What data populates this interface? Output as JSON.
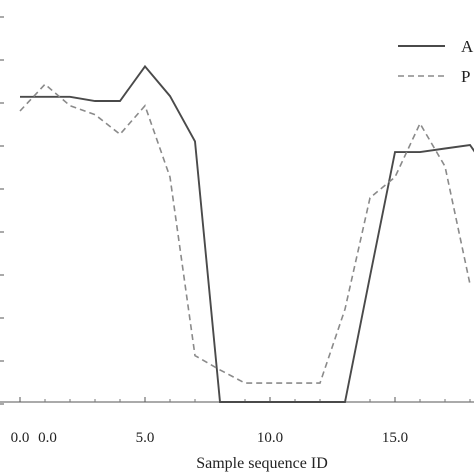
{
  "chart_data": {
    "type": "line",
    "xlabel": "Sample sequence ID",
    "ylabel": "",
    "xlim": [
      -0.5,
      18.5
    ],
    "ylim": [
      0,
      1
    ],
    "x_ticks": [
      0,
      5,
      10,
      15
    ],
    "x_tick_labels": [
      "0.0",
      "5.0",
      "10.0",
      "15.0"
    ],
    "extra_tick_label": "0.0",
    "grid": false,
    "legend_position": "top-right",
    "series": [
      {
        "name": "A",
        "style": "solid",
        "color": "#4a4a4a",
        "x": [
          0,
          1,
          2,
          3,
          4,
          5,
          6,
          7,
          8,
          9,
          10,
          11,
          12,
          13,
          14,
          15,
          16,
          17,
          18,
          18.5
        ],
        "y": [
          0.855,
          0.855,
          0.855,
          0.843,
          0.843,
          0.94,
          0.857,
          0.73,
          0.0,
          0.0,
          0.0,
          0.0,
          0.0,
          0.0,
          0.352,
          0.7,
          0.7,
          0.71,
          0.72,
          0.67
        ]
      },
      {
        "name": "P",
        "style": "dashed",
        "color": "#8a8a8a",
        "x": [
          0,
          1,
          2,
          3,
          4,
          5,
          6,
          7,
          8,
          9,
          10,
          11,
          12,
          13,
          14,
          15,
          16,
          17,
          18
        ],
        "y": [
          0.815,
          0.89,
          0.83,
          0.805,
          0.75,
          0.83,
          0.63,
          0.13,
          0.09,
          0.053,
          0.053,
          0.053,
          0.053,
          0.26,
          0.572,
          0.63,
          0.78,
          0.66,
          0.33
        ]
      }
    ]
  }
}
